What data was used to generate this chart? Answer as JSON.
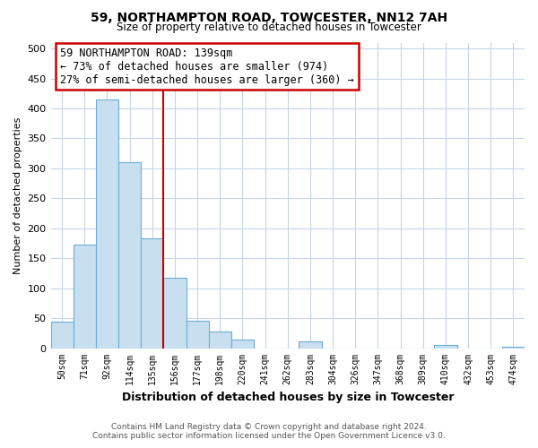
{
  "title": "59, NORTHAMPTON ROAD, TOWCESTER, NN12 7AH",
  "subtitle": "Size of property relative to detached houses in Towcester",
  "xlabel": "Distribution of detached houses by size in Towcester",
  "ylabel": "Number of detached properties",
  "bar_labels": [
    "50sqm",
    "71sqm",
    "92sqm",
    "114sqm",
    "135sqm",
    "156sqm",
    "177sqm",
    "198sqm",
    "220sqm",
    "241sqm",
    "262sqm",
    "283sqm",
    "304sqm",
    "326sqm",
    "347sqm",
    "368sqm",
    "389sqm",
    "410sqm",
    "432sqm",
    "453sqm",
    "474sqm"
  ],
  "bar_values": [
    44,
    173,
    415,
    310,
    184,
    117,
    46,
    27,
    14,
    0,
    0,
    12,
    0,
    0,
    0,
    0,
    0,
    5,
    0,
    0,
    3
  ],
  "bar_color": "#c8dff0",
  "bar_edge_color": "#6aaed6",
  "vline_x_index": 4,
  "vline_color": "#cc0000",
  "annotation_title": "59 NORTHAMPTON ROAD: 139sqm",
  "annotation_line1": "← 73% of detached houses are smaller (974)",
  "annotation_line2": "27% of semi-detached houses are larger (360) →",
  "annotation_box_edgecolor": "#cc0000",
  "ylim": [
    0,
    510
  ],
  "yticks": [
    0,
    50,
    100,
    150,
    200,
    250,
    300,
    350,
    400,
    450,
    500
  ],
  "footnote1": "Contains HM Land Registry data © Crown copyright and database right 2024.",
  "footnote2": "Contains public sector information licensed under the Open Government Licence v3.0.",
  "bg_color": "#ffffff",
  "grid_color": "#c8d4e8"
}
